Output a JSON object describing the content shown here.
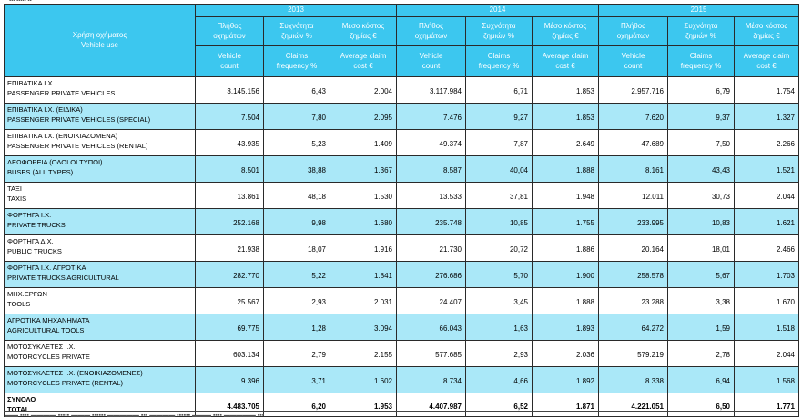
{
  "header": {
    "vehicle_use_gr": "Χρήση οχήματος",
    "vehicle_use_en": "Vehicle use",
    "years": [
      "2013",
      "2014",
      "2015"
    ],
    "metric_gr": [
      [
        "Πλήθος",
        "οχημάτων"
      ],
      [
        "Συχνότητα",
        "ζημιών %"
      ],
      [
        "Μέσο κόστος",
        "ζημίας €"
      ]
    ],
    "metric_en": [
      [
        "Vehicle",
        "count"
      ],
      [
        "Claims",
        "frequency %"
      ],
      [
        "Average claim",
        "cost €"
      ]
    ]
  },
  "rows": [
    {
      "gr": "ΕΠΙΒΑΤΙΚΑ Ι.Χ.",
      "en": "PASSENGER PRIVATE VEHICLES",
      "vals": [
        "3.145.156",
        "6,43",
        "2.004",
        "3.117.984",
        "6,71",
        "1.853",
        "2.957.716",
        "6,79",
        "1.754"
      ]
    },
    {
      "gr": "ΕΠΙΒΑΤΙΚΑ Ι.Χ. (ΕΙΔΙΚΑ)",
      "en": "PASSENGER  PRIVATE VEHICLES  (SPECIAL)",
      "vals": [
        "7.504",
        "7,80",
        "2.095",
        "7.476",
        "9,27",
        "1.853",
        "7.620",
        "9,37",
        "1.327"
      ]
    },
    {
      "gr": "ΕΠΙΒΑΤΙΚΑ Ι.Χ. (ΕΝΟΙΚΙΑΖΟΜΕΝΑ)",
      "en": "PASSENGER PRIVATE VEHICLES  (RENTAL)",
      "vals": [
        "43.935",
        "5,23",
        "1.409",
        "49.374",
        "7,87",
        "2.649",
        "47.689",
        "7,50",
        "2.266"
      ]
    },
    {
      "gr": "ΛΕΩΦΟΡΕΙΑ (ΟΛΟΙ ΟΙ ΤΥΠΟΙ)",
      "en": "BUSES (ALL TYPES)",
      "vals": [
        "8.501",
        "38,88",
        "1.367",
        "8.587",
        "40,04",
        "1.888",
        "8.161",
        "43,43",
        "1.521"
      ]
    },
    {
      "gr": "ΤΑΞΙ",
      "en": "TAXIS",
      "vals": [
        "13.861",
        "48,18",
        "1.530",
        "13.533",
        "37,81",
        "1.948",
        "12.011",
        "30,73",
        "2.044"
      ]
    },
    {
      "gr": "ΦΟΡΤΗΓΑ Ι.Χ.",
      "en": "PRIVATE TRUCKS",
      "vals": [
        "252.168",
        "9,98",
        "1.680",
        "235.748",
        "10,85",
        "1.755",
        "233.995",
        "10,83",
        "1.621"
      ]
    },
    {
      "gr": "ΦΟΡΤΗΓΑ Δ.Χ.",
      "en": "PUBLIC TRUCKS",
      "vals": [
        "21.938",
        "18,07",
        "1.916",
        "21.730",
        "20,72",
        "1.886",
        "20.164",
        "18,01",
        "2.466"
      ]
    },
    {
      "gr": "ΦΟΡΤΗΓΑ Ι.Χ. ΑΓΡΟΤΙΚΑ",
      "en": "PRIVATE TRUCKS AGRICULTURAL",
      "vals": [
        "282.770",
        "5,22",
        "1.841",
        "276.686",
        "5,70",
        "1.900",
        "258.578",
        "5,67",
        "1.703"
      ]
    },
    {
      "gr": "ΜΗΧ.ΕΡΓΩΝ",
      "en": "TOOLS",
      "vals": [
        "25.567",
        "2,93",
        "2.031",
        "24.407",
        "3,45",
        "1.888",
        "23.288",
        "3,38",
        "1.670"
      ]
    },
    {
      "gr": "ΑΓΡΟΤΙΚΑ ΜΗΧΑΝΗΜΑΤΑ",
      "en": "AGRICULTURAL TOOLS",
      "vals": [
        "69.775",
        "1,28",
        "3.094",
        "66.043",
        "1,63",
        "1.893",
        "64.272",
        "1,59",
        "1.518"
      ]
    },
    {
      "gr": "ΜΟΤΟΣΥΚΛΕΤΕΣ Ι.Χ.",
      "en": "MOTORCYCLES PRIVATE",
      "vals": [
        "603.134",
        "2,79",
        "2.155",
        "577.685",
        "2,93",
        "2.036",
        "579.219",
        "2,78",
        "2.044"
      ]
    },
    {
      "gr": "ΜΟΤΟΣΥΚΛΕΤΕΣ  Ι.Χ.  (ΕΝΟΙΚΙΑΖΟΜΕΝΕΣ)",
      "en": "MOTORCYCLES PRIVATE  (RENTAL)",
      "vals": [
        "9.396",
        "3,71",
        "1.602",
        "8.734",
        "4,66",
        "1.892",
        "8.338",
        "6,94",
        "1.568"
      ]
    },
    {
      "gr": "ΣΥΝΟΛΟ",
      "en": "TOTAL",
      "vals": [
        "4.483.705",
        "6,20",
        "1.953",
        "4.407.987",
        "6,52",
        "1.871",
        "4.221.051",
        "6,50",
        "1.771"
      ]
    }
  ]
}
